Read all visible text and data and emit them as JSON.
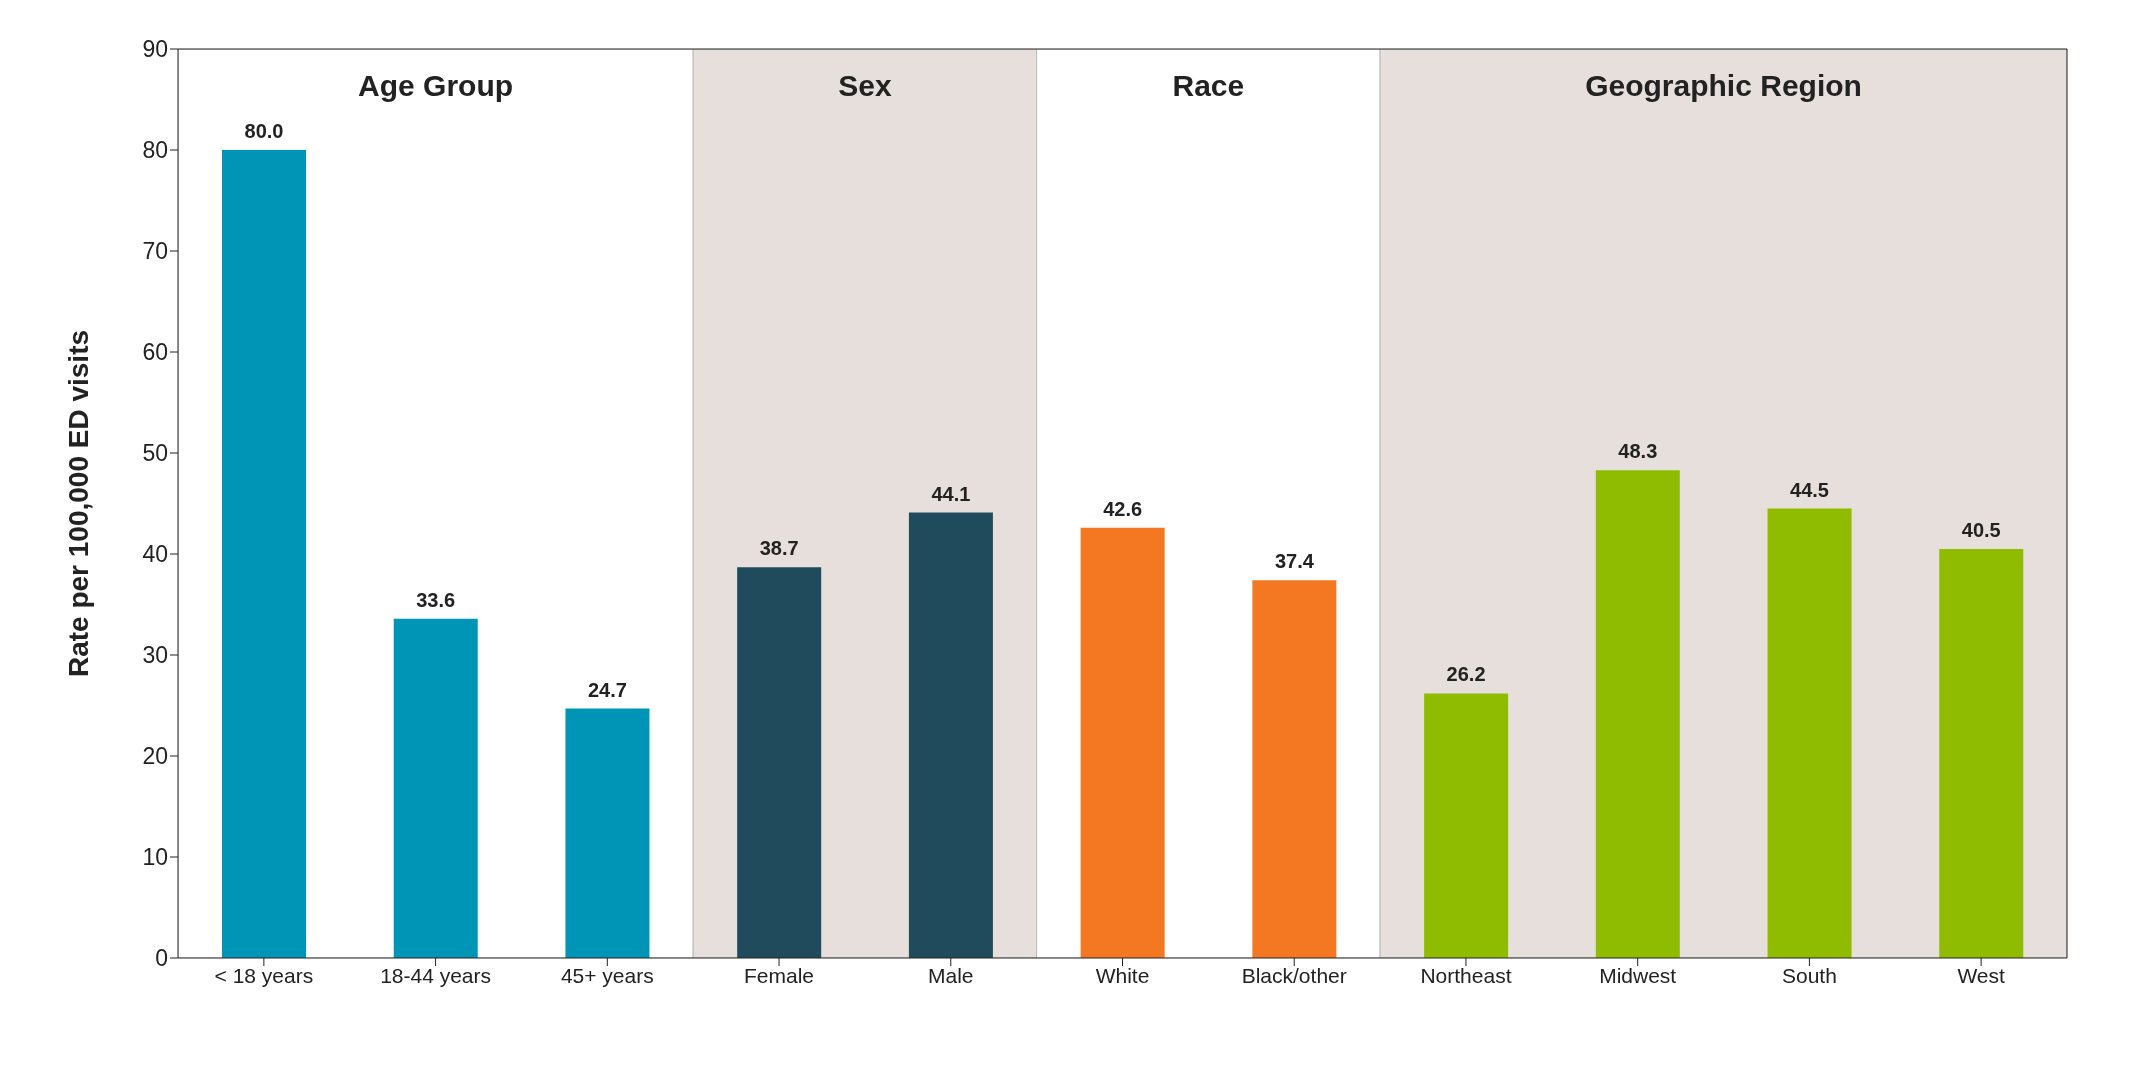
{
  "chart_data": {
    "type": "bar",
    "ylabel": "Rate per 100,000 ED visits",
    "categories": [
      "< 18 years",
      "18-44 years",
      "45+ years",
      "Female",
      "Male",
      "White",
      "Black/other",
      "Northeast",
      "Midwest",
      "South",
      "West"
    ],
    "values": [
      80.0,
      33.6,
      24.7,
      38.7,
      44.1,
      42.6,
      37.4,
      26.2,
      48.3,
      44.5,
      40.5
    ],
    "value_labels": [
      "80.0",
      "33.6",
      "24.7",
      "38.7",
      "44.1",
      "42.6",
      "37.4",
      "26.2",
      "48.3",
      "44.5",
      "40.5"
    ],
    "colors": [
      "#0095b6",
      "#0095b6",
      "#0095b6",
      "#1f4b5c",
      "#1f4b5c",
      "#f47721",
      "#f47721",
      "#8fbc00",
      "#8fbc00",
      "#8fbc00",
      "#8fbc00"
    ],
    "ylim": [
      0,
      90
    ],
    "yticks": [
      0,
      10,
      20,
      30,
      40,
      50,
      60,
      70,
      80,
      90
    ],
    "bands": [
      {
        "axis": "x",
        "from": "< 18 years",
        "to": "45+ years",
        "label": "Age Group",
        "color": "#ffffff"
      },
      {
        "axis": "x",
        "from": "Female",
        "to": "Male",
        "label": "Sex",
        "color": "#e7dfdc"
      },
      {
        "axis": "x",
        "from": "White",
        "to": "Black/other",
        "label": "Race",
        "color": "#ffffff"
      },
      {
        "axis": "x",
        "from": "Northeast",
        "to": "West",
        "label": "Geographic Region",
        "color": "#e7dfdc"
      }
    ]
  }
}
